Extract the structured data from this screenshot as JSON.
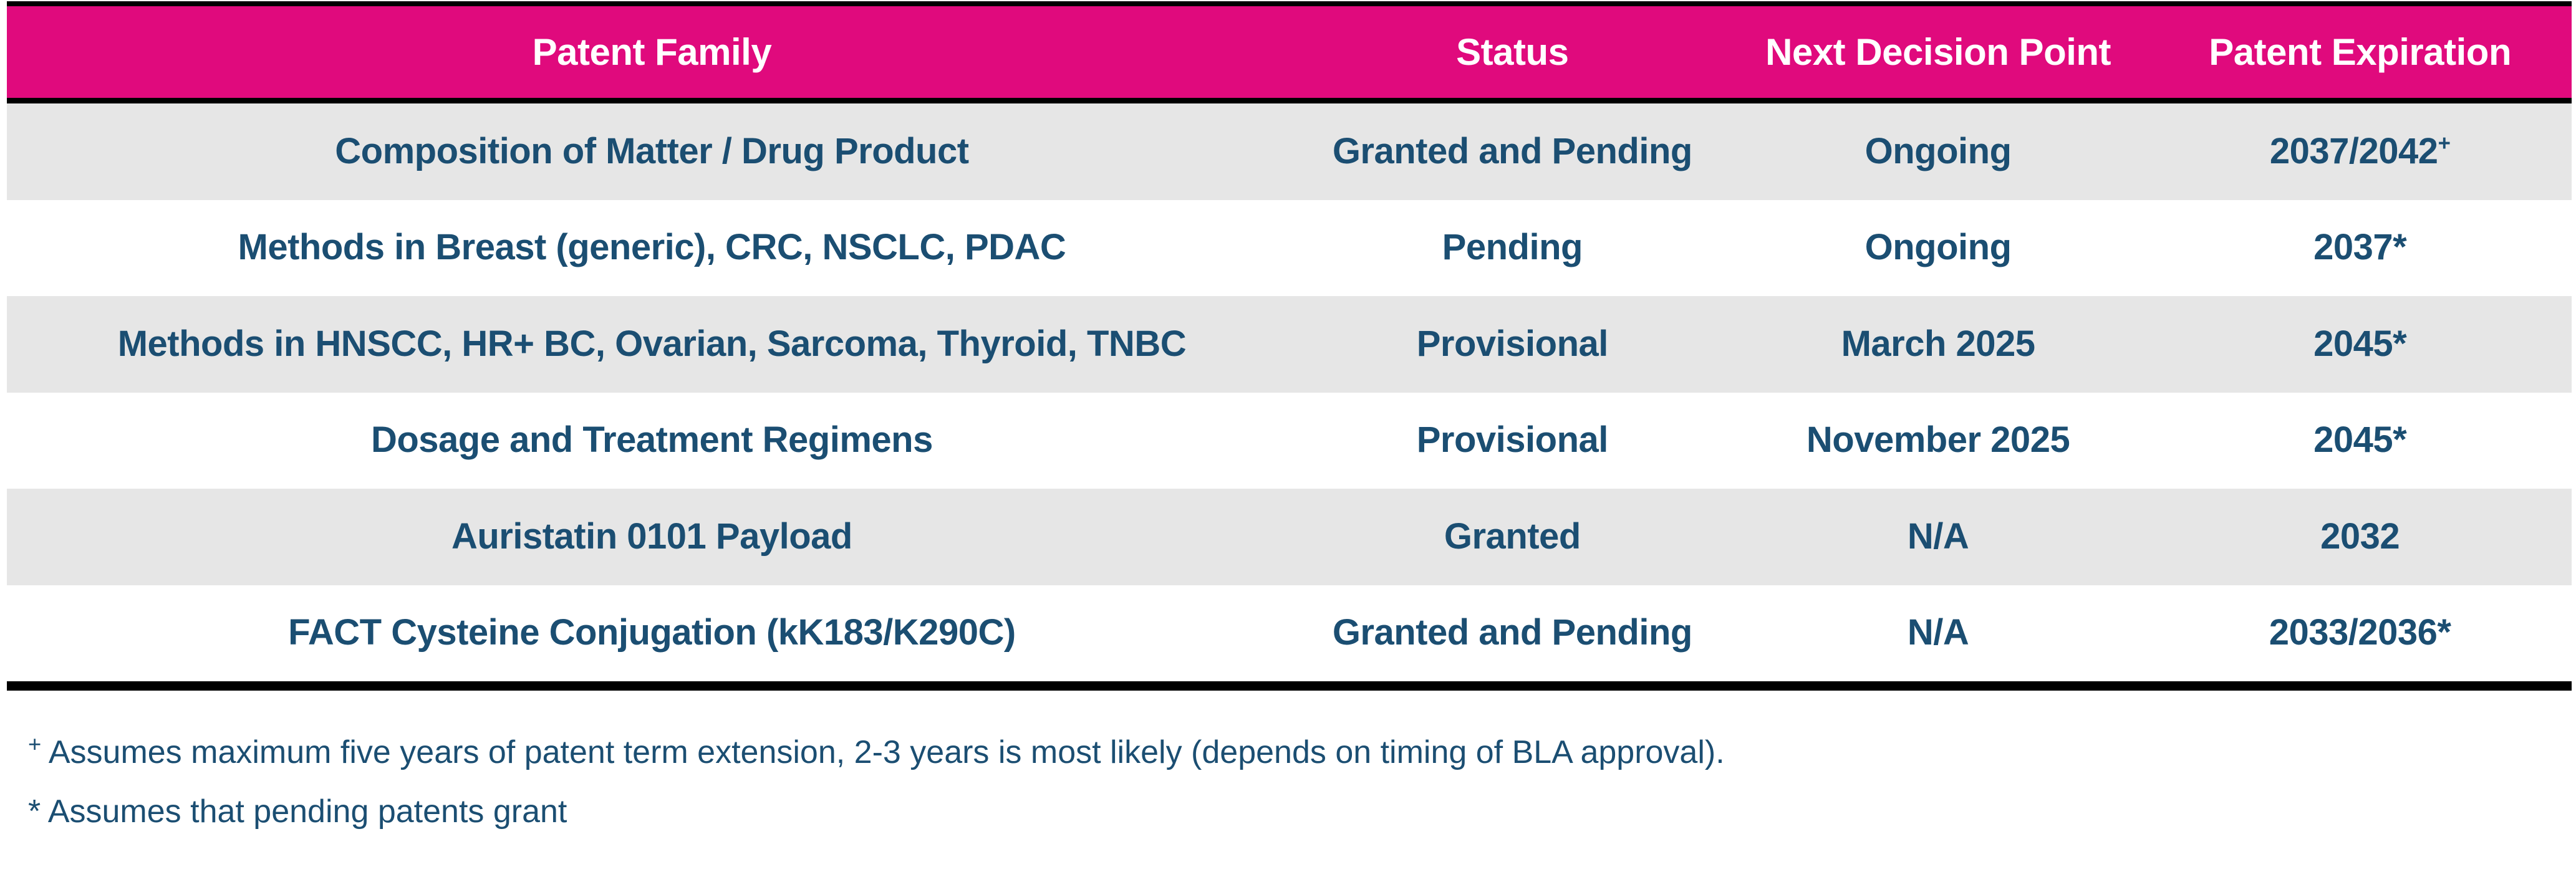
{
  "colors": {
    "header_background": "#e00a7d",
    "header_text": "#ffffff",
    "body_text": "#1b4e72",
    "stripe_row_background": "#e6e6e6",
    "plain_row_background": "#ffffff",
    "rule_color": "#000000"
  },
  "table": {
    "columns": [
      "Patent Family",
      "Status",
      "Next Decision Point",
      "Patent Expiration"
    ],
    "rows": [
      {
        "family": "Composition of Matter / Drug Product",
        "status": "Granted and Pending",
        "next_decision": "Ongoing",
        "expiration": "2037/2042",
        "expiration_sup": "+"
      },
      {
        "family": "Methods in Breast (generic), CRC, NSCLC, PDAC",
        "status": "Pending",
        "next_decision": "Ongoing",
        "expiration": "2037*",
        "expiration_sup": ""
      },
      {
        "family": "Methods in HNSCC, HR+ BC, Ovarian, Sarcoma, Thyroid, TNBC",
        "status": "Provisional",
        "next_decision": "March 2025",
        "expiration": "2045*",
        "expiration_sup": ""
      },
      {
        "family": "Dosage and Treatment Regimens",
        "status": "Provisional",
        "next_decision": "November 2025",
        "expiration": "2045*",
        "expiration_sup": ""
      },
      {
        "family": "Auristatin 0101 Payload",
        "status": "Granted",
        "next_decision": "N/A",
        "expiration": "2032",
        "expiration_sup": ""
      },
      {
        "family": "FACT Cysteine Conjugation (kK183/K290C)",
        "status": "Granted and Pending",
        "next_decision": "N/A",
        "expiration": "2033/2036*",
        "expiration_sup": ""
      }
    ]
  },
  "footnotes": [
    {
      "marker": "+",
      "text": "Assumes maximum five years of patent term extension, 2-3 years is most likely (depends on timing of BLA approval)."
    },
    {
      "marker": "*",
      "text": "Assumes that pending patents grant"
    }
  ]
}
